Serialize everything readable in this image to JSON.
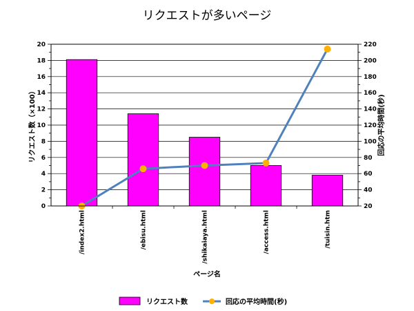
{
  "chart_data": {
    "type": "bar",
    "title": "リクエストが多いページ",
    "xlabel": "ページ名",
    "ylabel": "リクエスト数（×100）",
    "y2label": "回応の平均時間(秒)",
    "categories": [
      "/index2.html",
      "/ebisu.html",
      "/shikaiaya.html",
      "/access.html",
      "/tuisin.htm"
    ],
    "series": [
      {
        "name": "リクエスト数",
        "type": "bar",
        "axis": "left",
        "values": [
          18.1,
          11.4,
          8.5,
          5.0,
          3.8
        ],
        "color": "#ff00ff"
      },
      {
        "name": "回応の平均時間(秒)",
        "type": "line",
        "axis": "right",
        "values": [
          20,
          66,
          70,
          73,
          214
        ],
        "color": "#4f81bd",
        "marker_color": "#ffb000"
      }
    ],
    "ylim": [
      0,
      20
    ],
    "yticks": [
      "0",
      "2",
      "4",
      "6",
      "8",
      "10",
      "12",
      "14",
      "16",
      "18",
      "20"
    ],
    "y2lim": [
      20,
      220
    ],
    "y2ticks": [
      "20",
      "40",
      "60",
      "80",
      "100",
      "120",
      "140",
      "160",
      "180",
      "200",
      "220"
    ],
    "grid": true,
    "legend_position": "bottom"
  }
}
